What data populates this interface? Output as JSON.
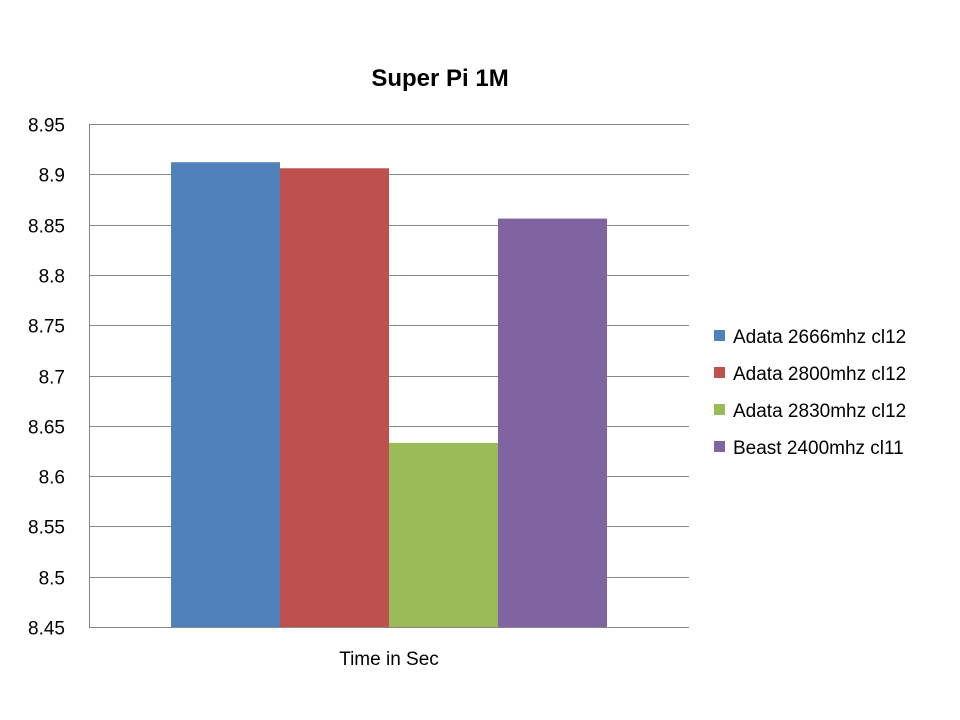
{
  "chart_data": {
    "type": "bar",
    "title": "Super Pi 1M",
    "xlabel": "",
    "ylabel": "",
    "categories": [
      "Time in Sec"
    ],
    "series": [
      {
        "name": "Adata 2666mhz cl12",
        "values": [
          8.912
        ],
        "color": "#4F81BD"
      },
      {
        "name": "Adata 2800mhz cl12",
        "values": [
          8.906
        ],
        "color": "#C0504D"
      },
      {
        "name": "Adata 2830mhz cl12",
        "values": [
          8.633
        ],
        "color": "#9BBB59"
      },
      {
        "name": "Beast 2400mhz cl11",
        "values": [
          8.856
        ],
        "color": "#8064A2"
      }
    ],
    "ylim": [
      8.45,
      8.95
    ],
    "yticks": [
      "8.45",
      "8.5",
      "8.55",
      "8.6",
      "8.65",
      "8.7",
      "8.75",
      "8.8",
      "8.85",
      "8.9",
      "8.95"
    ],
    "grid": true,
    "legend": "right"
  }
}
